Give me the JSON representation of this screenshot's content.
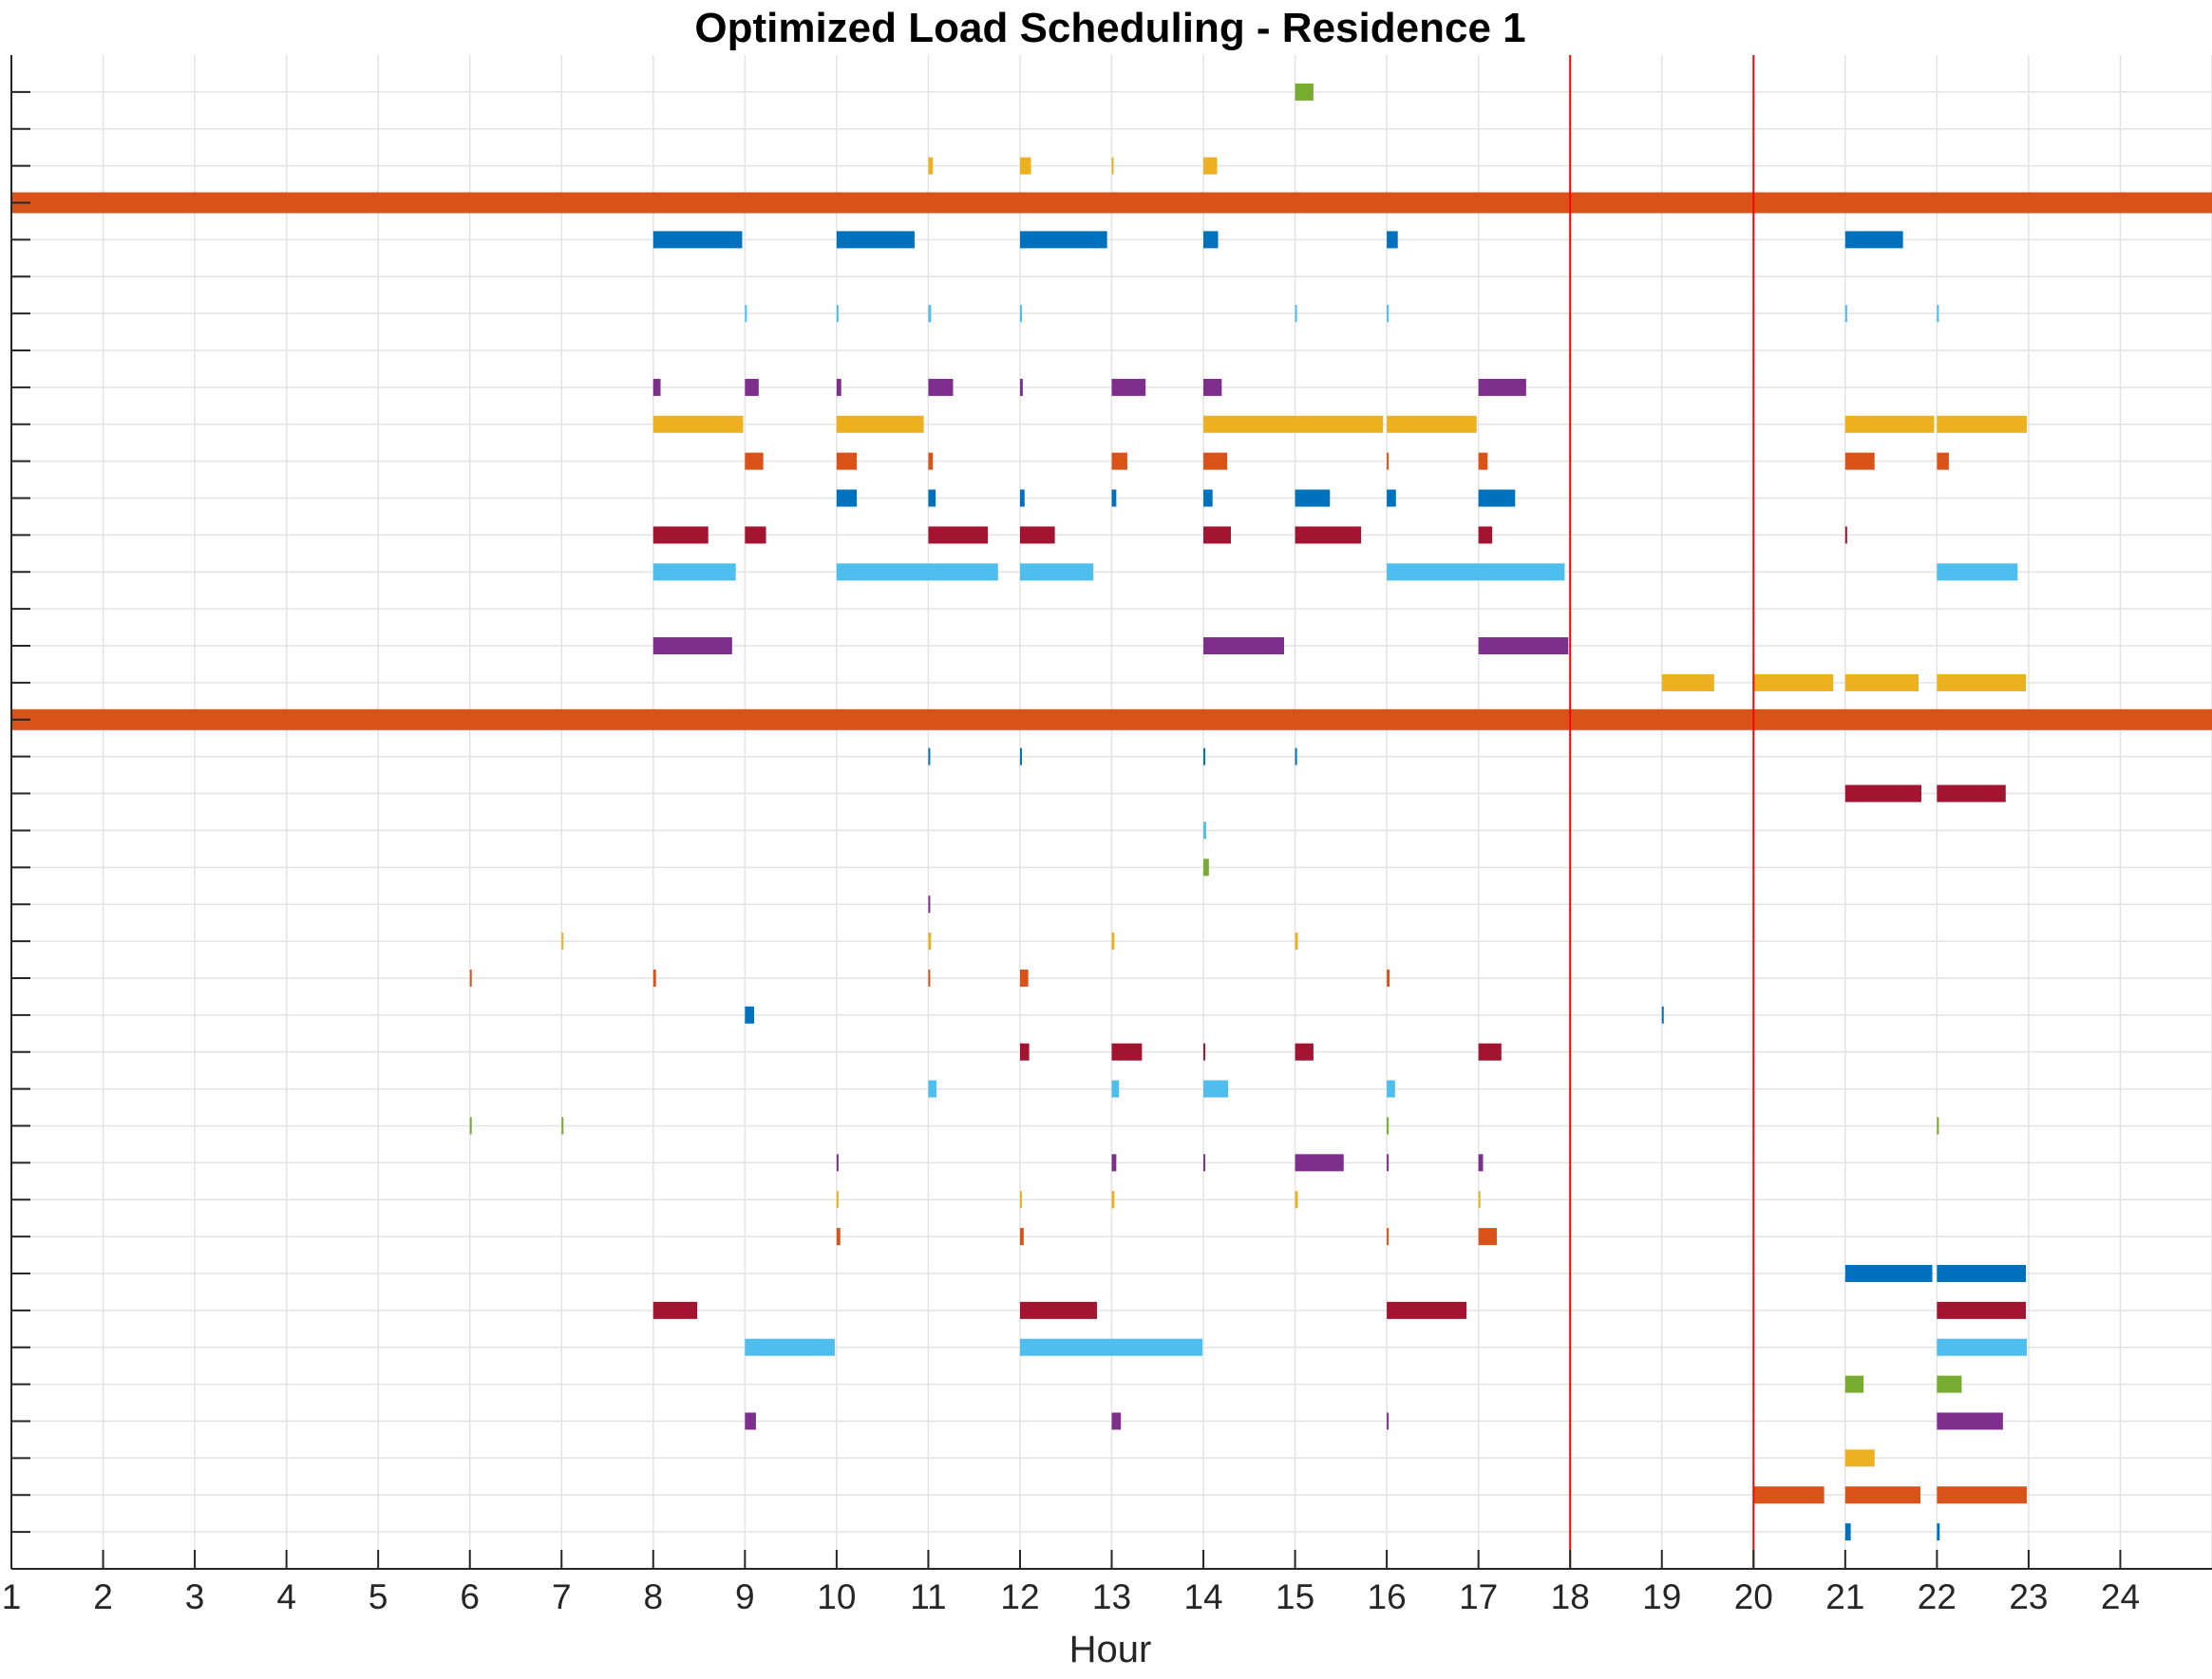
{
  "chart_data": {
    "type": "bar",
    "subtype": "horizontal-timeline",
    "title": "Optimized Load Scheduling - Residence 1",
    "xlabel": "Hour",
    "ylabel": "",
    "xlim": [
      1,
      25
    ],
    "ylim": [
      0,
      41
    ],
    "xticks": [
      1,
      2,
      3,
      4,
      5,
      6,
      7,
      8,
      9,
      10,
      11,
      12,
      13,
      14,
      15,
      16,
      17,
      18,
      19,
      20,
      21,
      22,
      23,
      24
    ],
    "grid": true,
    "legend": "none",
    "reference_lines": [
      {
        "x": 18,
        "color": "#ff0000"
      },
      {
        "x": 20,
        "color": "#ff0000"
      }
    ],
    "palette": {
      "blue": "#0072bd",
      "orange": "#d95319",
      "yellow": "#edb120",
      "purple": "#7e2f8e",
      "green": "#77ac30",
      "lightblue": "#4dbeee",
      "red": "#a2142f"
    },
    "rows": [
      {
        "row": 40,
        "color": "#77ac30",
        "intervals": [
          [
            15.0,
            15.2
          ]
        ]
      },
      {
        "row": 38,
        "color": "#edb120",
        "intervals": [
          [
            11.0,
            11.05
          ],
          [
            12.0,
            12.12
          ],
          [
            13.0,
            13.02
          ],
          [
            14.0,
            14.15
          ]
        ]
      },
      {
        "row": 37,
        "color": "#d95319",
        "intervals": [
          [
            1,
            25
          ]
        ],
        "full_width": true
      },
      {
        "row": 36,
        "color": "#0072bd",
        "intervals": [
          [
            8.0,
            8.97
          ],
          [
            10.0,
            10.85
          ],
          [
            12.0,
            12.95
          ],
          [
            14.0,
            14.16
          ],
          [
            16.0,
            16.12
          ],
          [
            21.0,
            21.63
          ]
        ]
      },
      {
        "row": 34,
        "color": "#4dbeee",
        "intervals": [
          [
            9.0,
            9.01
          ],
          [
            10.0,
            10.01
          ],
          [
            11.0,
            11.03
          ],
          [
            12.0,
            12.01
          ],
          [
            15.0,
            15.01
          ],
          [
            16.0,
            16.01
          ],
          [
            21.0,
            21.01
          ],
          [
            22.0,
            22.01
          ]
        ]
      },
      {
        "row": 32,
        "color": "#7e2f8e",
        "intervals": [
          [
            8.0,
            8.08
          ],
          [
            9.0,
            9.15
          ],
          [
            10.0,
            10.05
          ],
          [
            11.0,
            11.27
          ],
          [
            12.0,
            12.03
          ],
          [
            13.0,
            13.37
          ],
          [
            14.0,
            14.2
          ],
          [
            17.0,
            17.52
          ]
        ]
      },
      {
        "row": 31,
        "color": "#edb120",
        "intervals": [
          [
            8.0,
            8.98
          ],
          [
            10.0,
            10.95
          ],
          [
            14.0,
            15.96
          ],
          [
            16.0,
            16.98
          ],
          [
            21.0,
            21.97
          ],
          [
            22.0,
            22.98
          ]
        ]
      },
      {
        "row": 30,
        "color": "#d95319",
        "intervals": [
          [
            9.0,
            9.2
          ],
          [
            10.0,
            10.22
          ],
          [
            11.0,
            11.05
          ],
          [
            13.0,
            13.17
          ],
          [
            14.0,
            14.26
          ],
          [
            16.0,
            16.02
          ],
          [
            17.0,
            17.1
          ],
          [
            21.0,
            21.32
          ],
          [
            22.0,
            22.13
          ]
        ]
      },
      {
        "row": 29,
        "color": "#0072bd",
        "intervals": [
          [
            10.0,
            10.22
          ],
          [
            11.0,
            11.08
          ],
          [
            12.0,
            12.05
          ],
          [
            13.0,
            13.05
          ],
          [
            14.0,
            14.1
          ],
          [
            15.0,
            15.38
          ],
          [
            16.0,
            16.1
          ],
          [
            17.0,
            17.4
          ]
        ]
      },
      {
        "row": 28,
        "color": "#a2142f",
        "intervals": [
          [
            8.0,
            8.6
          ],
          [
            9.0,
            9.23
          ],
          [
            11.0,
            11.65
          ],
          [
            12.0,
            12.38
          ],
          [
            14.0,
            14.3
          ],
          [
            15.0,
            15.72
          ],
          [
            17.0,
            17.15
          ],
          [
            21.0,
            21.01
          ]
        ]
      },
      {
        "row": 27,
        "color": "#4dbeee",
        "intervals": [
          [
            8.0,
            8.9
          ],
          [
            10.0,
            11.76
          ],
          [
            12.0,
            12.8
          ],
          [
            16.0,
            17.94
          ],
          [
            22.0,
            22.88
          ]
        ]
      },
      {
        "row": 25,
        "color": "#7e2f8e",
        "intervals": [
          [
            8.0,
            8.86
          ],
          [
            14.0,
            14.88
          ],
          [
            17.0,
            17.98
          ]
        ]
      },
      {
        "row": 24,
        "color": "#edb120",
        "intervals": [
          [
            19.0,
            19.57
          ],
          [
            20.0,
            20.87
          ],
          [
            21.0,
            21.8
          ],
          [
            22.0,
            22.97
          ]
        ]
      },
      {
        "row": 23,
        "color": "#d95319",
        "intervals": [
          [
            1,
            25
          ]
        ],
        "full_width": true
      },
      {
        "row": 22,
        "color": "#0072bd",
        "intervals": [
          [
            11.0,
            11.01
          ],
          [
            12.0,
            12.01
          ],
          [
            14.0,
            14.01
          ],
          [
            15.0,
            15.01
          ]
        ]
      },
      {
        "row": 21,
        "color": "#a2142f",
        "intervals": [
          [
            21.0,
            21.83
          ],
          [
            22.0,
            22.75
          ]
        ]
      },
      {
        "row": 20,
        "color": "#4dbeee",
        "intervals": [
          [
            14.0,
            14.03
          ]
        ]
      },
      {
        "row": 19,
        "color": "#77ac30",
        "intervals": [
          [
            14.0,
            14.06
          ]
        ]
      },
      {
        "row": 18,
        "color": "#7e2f8e",
        "intervals": [
          [
            11.0,
            11.02
          ]
        ]
      },
      {
        "row": 17,
        "color": "#edb120",
        "intervals": [
          [
            7.0,
            7.02
          ],
          [
            11.0,
            11.03
          ],
          [
            13.0,
            13.03
          ],
          [
            15.0,
            15.03
          ]
        ]
      },
      {
        "row": 16,
        "color": "#d95319",
        "intervals": [
          [
            6.0,
            6.01
          ],
          [
            8.0,
            8.03
          ],
          [
            11.0,
            11.01
          ],
          [
            12.0,
            12.09
          ],
          [
            16.0,
            16.03
          ]
        ]
      },
      {
        "row": 15,
        "color": "#0072bd",
        "intervals": [
          [
            9.0,
            9.1
          ],
          [
            19.0,
            19.01
          ]
        ]
      },
      {
        "row": 14,
        "color": "#a2142f",
        "intervals": [
          [
            12.0,
            12.1
          ],
          [
            13.0,
            13.33
          ],
          [
            14.0,
            14.01
          ],
          [
            15.0,
            15.2
          ],
          [
            17.0,
            17.25
          ]
        ]
      },
      {
        "row": 13,
        "color": "#4dbeee",
        "intervals": [
          [
            11.0,
            11.09
          ],
          [
            13.0,
            13.08
          ],
          [
            14.0,
            14.27
          ],
          [
            16.0,
            16.09
          ]
        ]
      },
      {
        "row": 12,
        "color": "#77ac30",
        "intervals": [
          [
            6.0,
            6.01
          ],
          [
            7.0,
            7.02
          ],
          [
            16.0,
            16.02
          ],
          [
            22.0,
            22.01
          ]
        ]
      },
      {
        "row": 11,
        "color": "#7e2f8e",
        "intervals": [
          [
            10.0,
            10.02
          ],
          [
            13.0,
            13.05
          ],
          [
            14.0,
            14.01
          ],
          [
            15.0,
            15.53
          ],
          [
            16.0,
            16.02
          ],
          [
            17.0,
            17.05
          ]
        ]
      },
      {
        "row": 10,
        "color": "#edb120",
        "intervals": [
          [
            10.0,
            10.02
          ],
          [
            12.0,
            12.01
          ],
          [
            13.0,
            13.03
          ],
          [
            15.0,
            15.03
          ],
          [
            17.0,
            17.01
          ]
        ]
      },
      {
        "row": 9,
        "color": "#d95319",
        "intervals": [
          [
            10.0,
            10.04
          ],
          [
            12.0,
            12.04
          ],
          [
            16.0,
            16.02
          ],
          [
            17.0,
            17.2
          ]
        ]
      },
      {
        "row": 8,
        "color": "#0072bd",
        "intervals": [
          [
            21.0,
            21.95
          ],
          [
            22.0,
            22.97
          ]
        ]
      },
      {
        "row": 7,
        "color": "#a2142f",
        "intervals": [
          [
            8.0,
            8.48
          ],
          [
            12.0,
            12.84
          ],
          [
            16.0,
            16.87
          ],
          [
            22.0,
            22.97
          ]
        ]
      },
      {
        "row": 6,
        "color": "#4dbeee",
        "intervals": [
          [
            9.0,
            9.98
          ],
          [
            12.0,
            13.99
          ],
          [
            22.0,
            22.98
          ]
        ]
      },
      {
        "row": 5,
        "color": "#77ac30",
        "intervals": [
          [
            21.0,
            21.2
          ],
          [
            22.0,
            22.27
          ]
        ]
      },
      {
        "row": 4,
        "color": "#7e2f8e",
        "intervals": [
          [
            9.0,
            9.12
          ],
          [
            13.0,
            13.1
          ],
          [
            16.0,
            16.02
          ],
          [
            22.0,
            22.72
          ]
        ]
      },
      {
        "row": 3,
        "color": "#edb120",
        "intervals": [
          [
            21.0,
            21.32
          ]
        ]
      },
      {
        "row": 2,
        "color": "#d95319",
        "intervals": [
          [
            20.0,
            20.77
          ],
          [
            21.0,
            21.82
          ],
          [
            22.0,
            22.98
          ]
        ]
      },
      {
        "row": 1,
        "color": "#0072bd",
        "intervals": [
          [
            21.0,
            21.06
          ],
          [
            22.0,
            22.03
          ]
        ]
      }
    ]
  }
}
